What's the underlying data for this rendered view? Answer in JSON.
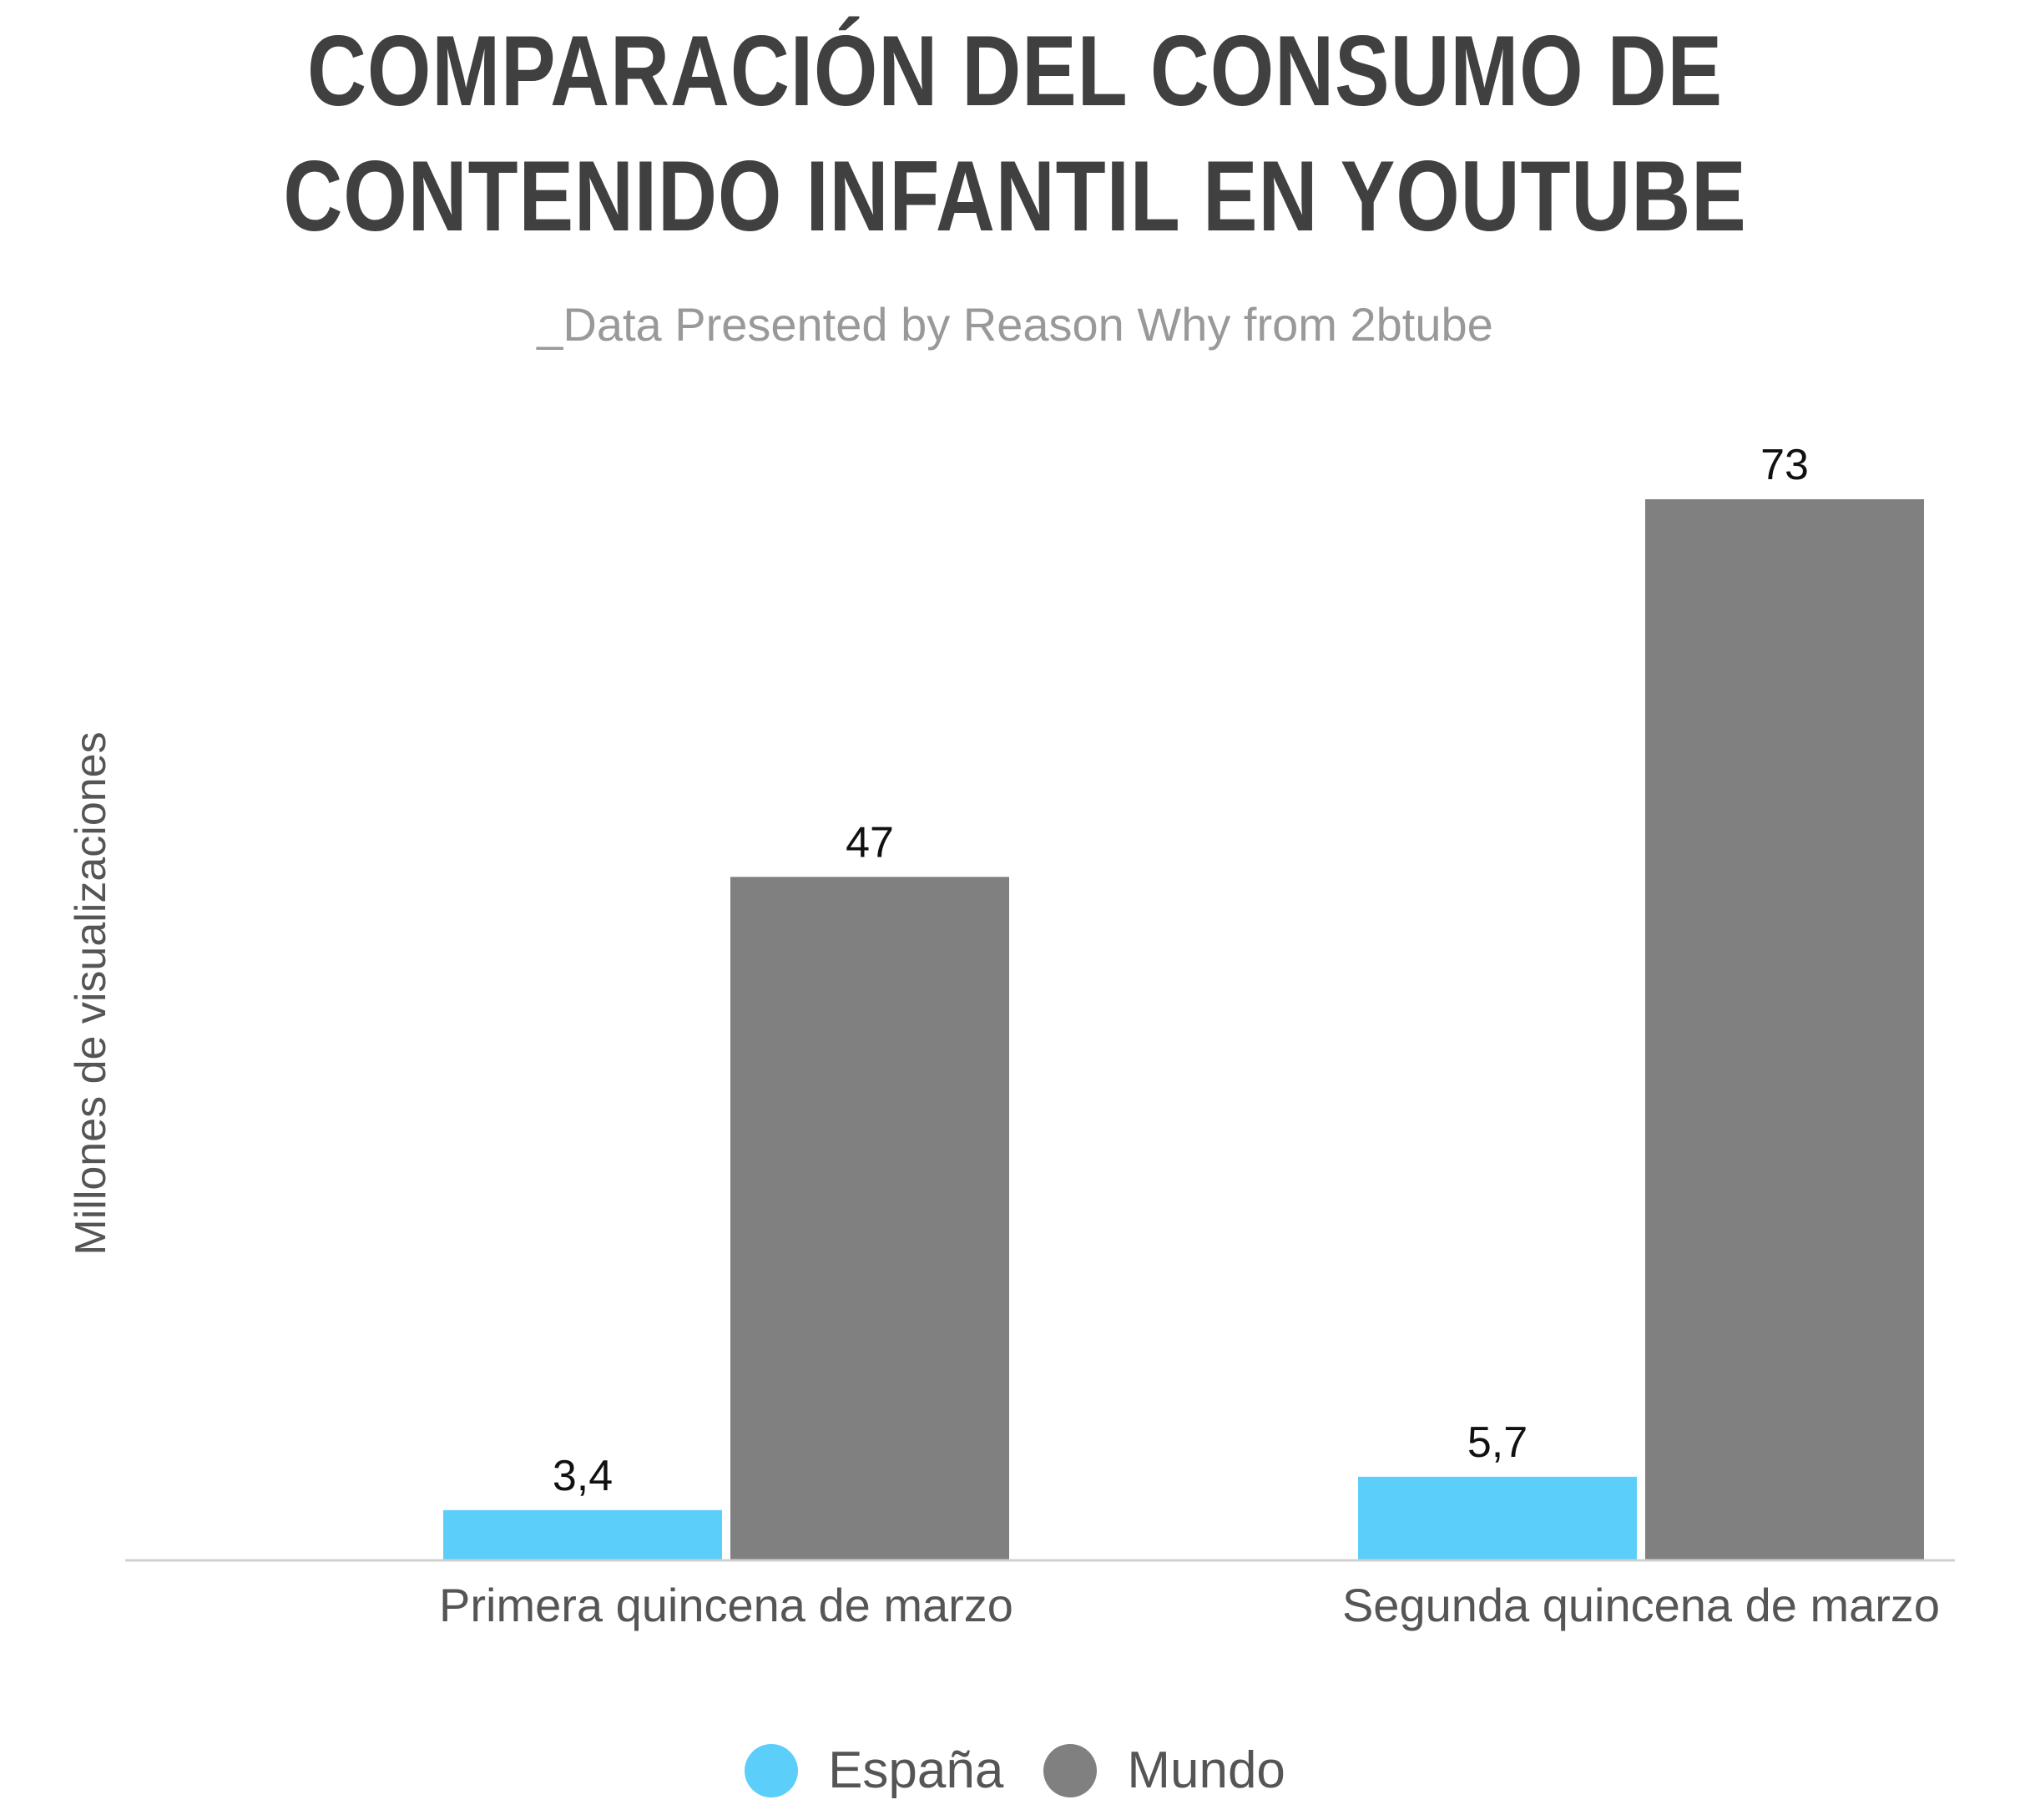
{
  "title_lines": [
    "COMPARACIÓN DEL CONSUMO DE",
    "CONTENIDO INFANTIL EN YOUTUBE"
  ],
  "subtitle": "_Data Presented by Reason Why from 2btube",
  "colors": {
    "espana": "#5BCEFA",
    "mundo": "#808080",
    "title": "#404040",
    "subtitle": "#999999",
    "axis_line": "#D0D0D0"
  },
  "chart_data": {
    "type": "bar",
    "title": "COMPARACIÓN DEL CONSUMO DE CONTENIDO INFANTIL EN YOUTUBE",
    "subtitle": "_Data Presented by Reason Why from 2btube",
    "xlabel": "",
    "ylabel": "Millones de visualizaciones",
    "categories": [
      "Primera quincena de marzo",
      "Segunda quincena de marzo"
    ],
    "series": [
      {
        "name": "España",
        "values": [
          3.4,
          5.7
        ],
        "labels": [
          "3,4",
          "5,7"
        ],
        "color": "#5BCEFA"
      },
      {
        "name": "Mundo",
        "values": [
          47,
          73
        ],
        "labels": [
          "47",
          "73"
        ],
        "color": "#808080"
      }
    ],
    "ylim": [
      0,
      73
    ],
    "grid": false,
    "legend_position": "bottom-center"
  }
}
